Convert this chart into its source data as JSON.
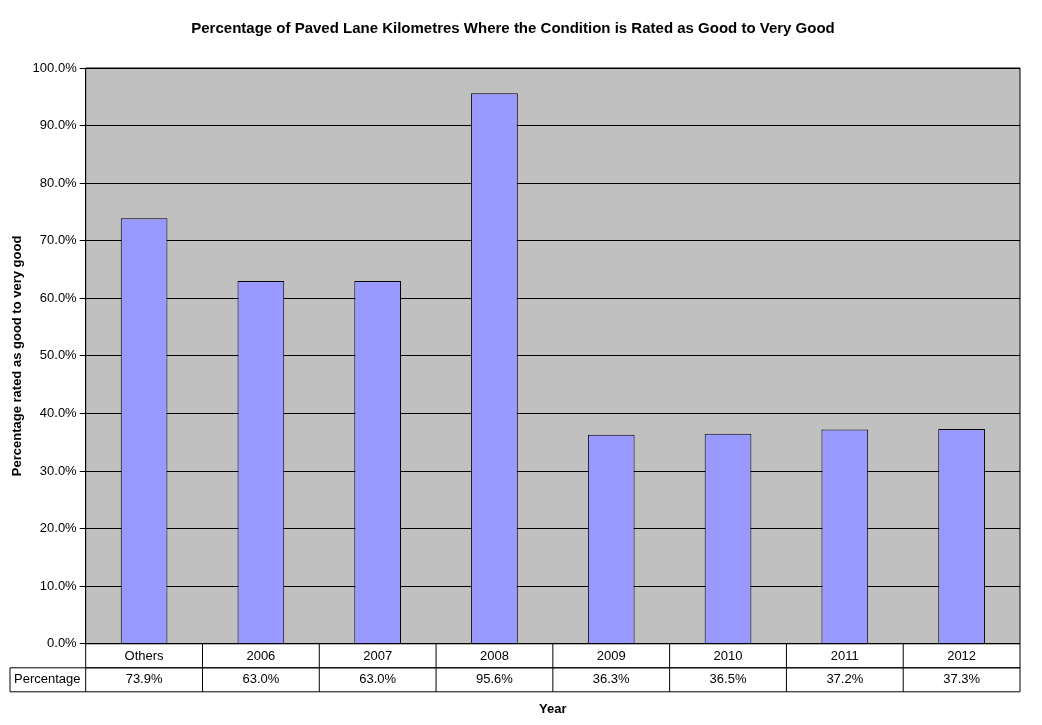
{
  "chart_data": {
    "type": "bar",
    "title": "Percentage of Paved Lane Kilometres Where the Condition is Rated as Good to Very Good",
    "xlabel": "Year",
    "ylabel": "Percentage rated as good to very good",
    "categories": [
      "Others",
      "2006",
      "2007",
      "2008",
      "2009",
      "2010",
      "2011",
      "2012"
    ],
    "series": [
      {
        "name": "Percentage",
        "color": "#9999ff",
        "values": [
          73.9,
          63.0,
          63.0,
          95.6,
          36.3,
          36.5,
          37.2,
          37.3
        ],
        "value_labels": [
          "73.9%",
          "63.0%",
          "63.0%",
          "95.6%",
          "36.3%",
          "36.5%",
          "37.2%",
          "37.3%"
        ]
      }
    ],
    "ylim": [
      0,
      100
    ],
    "yticks": [
      {
        "value": 0,
        "label": "0.0%"
      },
      {
        "value": 10,
        "label": "10.0%"
      },
      {
        "value": 20,
        "label": "20.0%"
      },
      {
        "value": 30,
        "label": "30.0%"
      },
      {
        "value": 40,
        "label": "40.0%"
      },
      {
        "value": 50,
        "label": "50.0%"
      },
      {
        "value": 60,
        "label": "60.0%"
      },
      {
        "value": 70,
        "label": "70.0%"
      },
      {
        "value": 80,
        "label": "80.0%"
      },
      {
        "value": 90,
        "label": "90.0%"
      },
      {
        "value": 100,
        "label": "100.0%"
      }
    ],
    "grid": "y",
    "legend": false
  }
}
